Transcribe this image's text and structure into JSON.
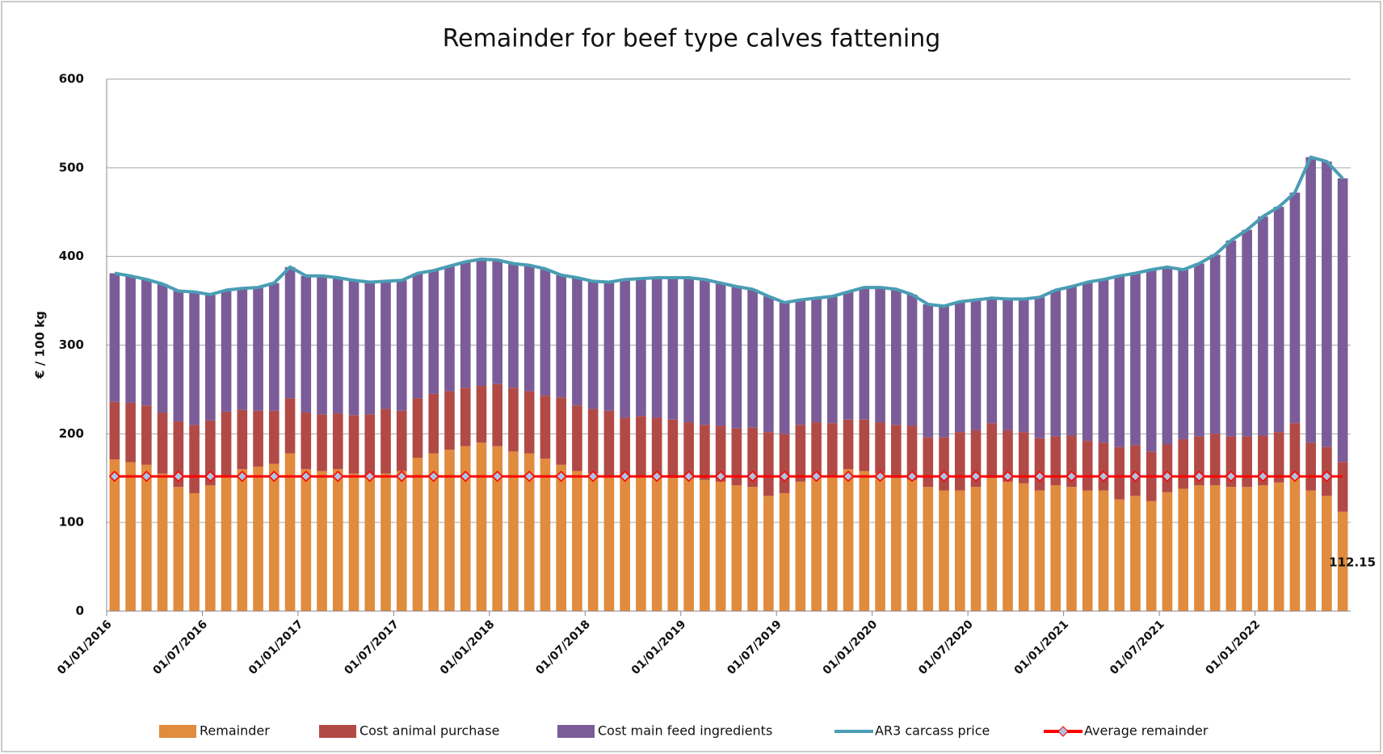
{
  "chart_data": {
    "type": "bar",
    "stacked": true,
    "title": "Remainder for beef type calves fattening",
    "y_label": "€ / 100 kg",
    "categories": [
      "01/01/2016",
      null,
      null,
      null,
      null,
      null,
      "01/07/2016",
      null,
      null,
      null,
      null,
      null,
      "01/01/2017",
      null,
      null,
      null,
      null,
      null,
      "01/07/2017",
      null,
      null,
      null,
      null,
      null,
      "01/01/2018",
      null,
      null,
      null,
      null,
      null,
      "01/07/2018",
      null,
      null,
      null,
      null,
      null,
      "01/01/2019",
      null,
      null,
      null,
      null,
      null,
      "01/07/2019",
      null,
      null,
      null,
      null,
      null,
      "01/01/2020",
      null,
      null,
      null,
      null,
      null,
      "01/07/2020",
      null,
      null,
      null,
      null,
      null,
      "01/01/2021",
      null,
      null,
      null,
      null,
      null,
      "01/07/2021",
      null,
      null,
      null,
      null,
      null,
      "01/01/2022",
      null,
      null,
      null,
      null,
      null
    ],
    "ylim": [
      0,
      600
    ],
    "yticks": [
      0,
      100,
      200,
      300,
      400,
      500,
      600
    ],
    "grid": true,
    "legend": "bottom",
    "series": [
      {
        "name": "Remainder",
        "type": "bar",
        "color": "#e08b3e",
        "values": [
          171,
          168,
          165,
          155,
          140,
          133,
          142,
          152,
          160,
          163,
          166,
          178,
          160,
          158,
          160,
          155,
          152,
          155,
          158,
          173,
          178,
          182,
          186,
          190,
          186,
          180,
          178,
          172,
          165,
          158,
          155,
          152,
          150,
          152,
          150,
          150,
          150,
          148,
          146,
          142,
          140,
          130,
          133,
          146,
          150,
          152,
          160,
          158,
          155,
          150,
          148,
          140,
          136,
          136,
          140,
          150,
          146,
          144,
          136,
          142,
          140,
          136,
          136,
          126,
          130,
          124,
          134,
          138,
          142,
          142,
          140,
          140,
          142,
          145,
          150,
          136,
          130,
          112.15
        ]
      },
      {
        "name": "Cost animal purchase",
        "type": "bar",
        "color": "#b14a46",
        "values": [
          65,
          67,
          67,
          69,
          74,
          77,
          73,
          73,
          67,
          63,
          60,
          62,
          64,
          64,
          63,
          66,
          70,
          73,
          68,
          67,
          67,
          66,
          66,
          64,
          70,
          72,
          70,
          71,
          76,
          74,
          73,
          74,
          68,
          68,
          68,
          66,
          63,
          62,
          63,
          64,
          67,
          72,
          67,
          64,
          63,
          60,
          56,
          58,
          58,
          60,
          61,
          56,
          60,
          66,
          64,
          62,
          58,
          58,
          59,
          55,
          58,
          56,
          54,
          59,
          57,
          56,
          54,
          56,
          55,
          58,
          57,
          57,
          56,
          57,
          62,
          54,
          55,
          56
        ]
      },
      {
        "name": "Cost main feed ingredients",
        "type": "bar",
        "color": "#7b5c98",
        "values": [
          145,
          143,
          142,
          145,
          147,
          150,
          142,
          137,
          137,
          139,
          144,
          148,
          154,
          156,
          153,
          152,
          149,
          144,
          147,
          141,
          139,
          141,
          142,
          143,
          140,
          140,
          142,
          143,
          138,
          144,
          144,
          145,
          156,
          155,
          158,
          160,
          163,
          164,
          161,
          160,
          156,
          153,
          148,
          141,
          140,
          143,
          144,
          149,
          152,
          153,
          148,
          150,
          148,
          147,
          147,
          141,
          148,
          150,
          159,
          165,
          168,
          179,
          184,
          193,
          194,
          205,
          200,
          191,
          195,
          202,
          221,
          233,
          247,
          254,
          260,
          322,
          322,
          320
        ]
      },
      {
        "name": "AR3 carcass price",
        "type": "line",
        "color": "#4a9db4",
        "values": [
          381,
          378,
          374,
          369,
          361,
          360,
          357,
          362,
          364,
          365,
          370,
          388,
          378,
          378,
          376,
          373,
          371,
          372,
          373,
          381,
          384,
          389,
          394,
          397,
          396,
          392,
          390,
          386,
          379,
          376,
          372,
          371,
          374,
          375,
          376,
          376,
          376,
          374,
          370,
          366,
          363,
          355,
          348,
          351,
          353,
          355,
          360,
          365,
          365,
          363,
          357,
          346,
          344,
          349,
          351,
          353,
          352,
          352,
          354,
          362,
          366,
          371,
          374,
          378,
          381,
          385,
          388,
          385,
          392,
          402,
          418,
          430,
          445,
          456,
          472,
          512,
          507,
          488
        ]
      },
      {
        "name": "Average remainder",
        "type": "line",
        "color": "#ff0000",
        "marker_color": "#a9c4e4",
        "values": [
          152,
          152,
          152,
          152,
          152,
          152,
          152,
          152,
          152,
          152,
          152,
          152,
          152,
          152,
          152,
          152,
          152,
          152,
          152,
          152,
          152,
          152,
          152,
          152,
          152,
          152,
          152,
          152,
          152,
          152,
          152,
          152,
          152,
          152,
          152,
          152,
          152,
          152,
          152,
          152,
          152,
          152,
          152,
          152,
          152,
          152,
          152,
          152,
          152,
          152,
          152,
          152,
          152,
          152,
          152,
          152,
          152,
          152,
          152,
          152,
          152,
          152,
          152,
          152,
          152,
          152,
          152,
          152,
          152,
          152,
          152,
          152,
          152,
          152,
          152,
          152,
          152,
          152
        ]
      }
    ]
  }
}
